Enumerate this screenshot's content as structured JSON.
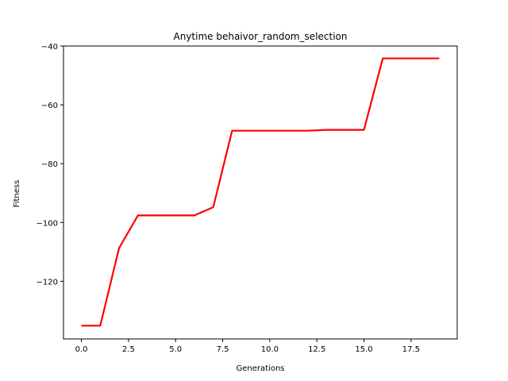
{
  "chart_data": {
    "type": "line",
    "title": "Anytime behaivor_random_selection",
    "xlabel": "Generations",
    "ylabel": "Fitness",
    "xlim": [
      -0.95,
      19.95
    ],
    "ylim": [
      -139.6,
      -40
    ],
    "xticks": [
      0.0,
      2.5,
      5.0,
      7.5,
      10.0,
      12.5,
      15.0,
      17.5
    ],
    "xtick_labels": [
      "0.0",
      "2.5",
      "5.0",
      "7.5",
      "10.0",
      "12.5",
      "15.0",
      "17.5"
    ],
    "yticks": [
      -120,
      -100,
      -80,
      -60,
      -40
    ],
    "ytick_labels": [
      "−120",
      "−100",
      "−80",
      "−60",
      "−40"
    ],
    "grid": false,
    "series": [
      {
        "color": "#ff0000",
        "x": [
          0,
          1,
          2,
          3,
          4,
          5,
          6,
          7,
          8,
          9,
          10,
          11,
          12,
          13,
          14,
          15,
          16,
          17,
          18,
          19
        ],
        "y": [
          -135.1,
          -135.1,
          -108.7,
          -97.6,
          -97.6,
          -97.6,
          -97.6,
          -94.8,
          -68.8,
          -68.8,
          -68.8,
          -68.8,
          -68.8,
          -68.5,
          -68.5,
          -68.5,
          -44.2,
          -44.2,
          -44.2,
          -44.2
        ]
      }
    ]
  }
}
